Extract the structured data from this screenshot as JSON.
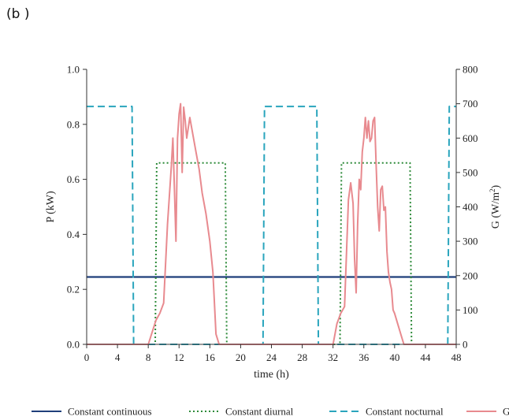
{
  "panel_label": "(b )",
  "chart_data": {
    "type": "line",
    "title": "",
    "xlabel": "time (h)",
    "ylabel": "P (kW)",
    "ylabel_right": "G (W/m",
    "ylabel_right_sup": "2",
    "ylabel_right_close": ")",
    "xlim": [
      0,
      48
    ],
    "ylim": [
      0,
      1.0
    ],
    "ylim_right": [
      0,
      800
    ],
    "x_ticks": [
      0,
      4,
      8,
      12,
      16,
      20,
      24,
      28,
      32,
      36,
      40,
      44,
      48
    ],
    "y_ticks": [
      "0.0",
      "0.2",
      "0.4",
      "0.6",
      "0.8",
      "1.0"
    ],
    "y_right_ticks": [
      "0",
      "100",
      "200",
      "300",
      "400",
      "500",
      "600",
      "700",
      "800"
    ],
    "legend_position": "bottom",
    "series": [
      {
        "name": "Constant continuous",
        "axis": "left",
        "color": "#1f3f7a",
        "style": "solid",
        "x": [
          0,
          48
        ],
        "y": [
          0.245,
          0.245
        ]
      },
      {
        "name": "Constant diurnal",
        "axis": "left",
        "color": "#2e8b3a",
        "style": "dotted",
        "x": [
          0,
          8.9,
          9.1,
          18.0,
          18.2,
          32.9,
          33.1,
          42.0,
          42.2,
          48
        ],
        "y": [
          0,
          0,
          0.66,
          0.66,
          0,
          0,
          0.66,
          0.66,
          0,
          0
        ]
      },
      {
        "name": "Constant nocturnal",
        "axis": "left",
        "color": "#2aa5bd",
        "style": "dashed",
        "x": [
          0,
          5.9,
          6.1,
          22.9,
          23.1,
          29.9,
          30.1,
          46.9,
          47.1,
          48
        ],
        "y": [
          0.865,
          0.865,
          0,
          0,
          0.865,
          0.865,
          0,
          0,
          0.865,
          0.865
        ]
      },
      {
        "name": "G",
        "axis": "right",
        "color": "#e88a8f",
        "style": "solid",
        "x": [
          0,
          6.5,
          8.0,
          9.0,
          9.5,
          10.0,
          10.5,
          10.8,
          11.0,
          11.2,
          11.4,
          11.6,
          11.8,
          12.0,
          12.2,
          12.4,
          12.6,
          12.8,
          13.0,
          13.4,
          13.8,
          14.2,
          14.6,
          15.0,
          15.5,
          16.0,
          16.4,
          16.8,
          17.2,
          24,
          32.0,
          32.5,
          33.0,
          33.5,
          34.0,
          34.3,
          34.6,
          34.8,
          35.0,
          35.2,
          35.4,
          35.6,
          35.8,
          36.0,
          36.2,
          36.4,
          36.6,
          36.8,
          37.0,
          37.2,
          37.4,
          37.6,
          37.8,
          38.0,
          38.2,
          38.4,
          38.6,
          38.8,
          39.0,
          39.2,
          39.4,
          39.6,
          39.8,
          40.0,
          40.4,
          40.8,
          41.2,
          41.6,
          48
        ],
        "y": [
          0,
          0,
          0,
          70,
          90,
          120,
          350,
          450,
          520,
          600,
          450,
          300,
          600,
          670,
          700,
          500,
          690,
          650,
          600,
          660,
          610,
          560,
          510,
          440,
          380,
          300,
          210,
          30,
          0,
          0,
          0,
          60,
          90,
          110,
          420,
          470,
          410,
          250,
          150,
          350,
          480,
          450,
          560,
          600,
          660,
          600,
          650,
          590,
          600,
          650,
          660,
          520,
          400,
          330,
          450,
          460,
          390,
          400,
          270,
          210,
          180,
          160,
          100,
          90,
          60,
          30,
          0,
          0,
          0
        ]
      }
    ]
  }
}
